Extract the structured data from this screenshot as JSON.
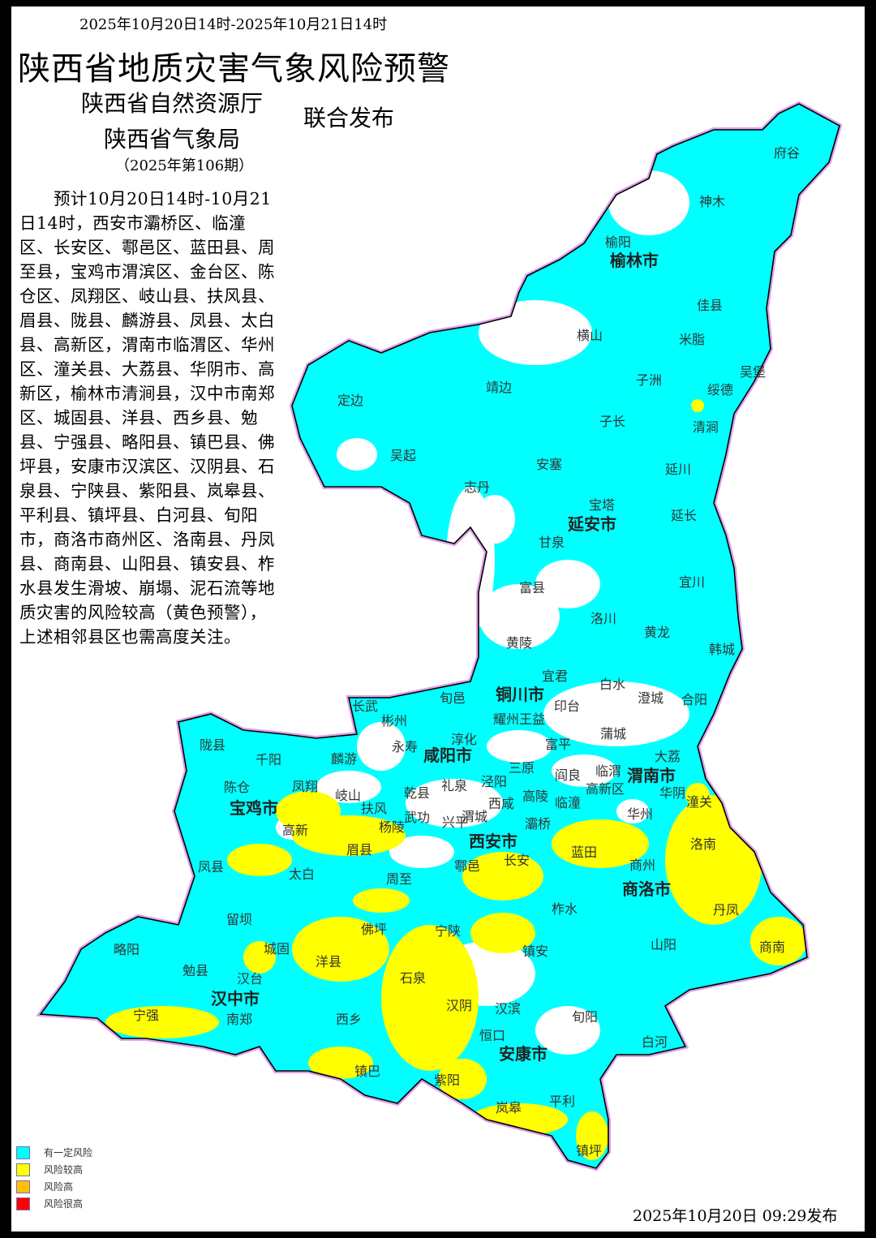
{
  "header": {
    "date_range": "2025年10月20日14时-2025年10月21日14时",
    "title": "陕西省地质灾害气象风险预警",
    "org1": "陕西省自然资源厅",
    "org2": "陕西省气象局",
    "joint": "联合发布",
    "issue": "（2025年第106期）"
  },
  "body_text": "预计10月20日14时-10月21日14时，西安市灞桥区、临潼区、长安区、鄠邑区、蓝田县、周至县，宝鸡市渭滨区、金台区、陈仓区、凤翔区、岐山县、扶风县、眉县、陇县、麟游县、凤县、太白县、高新区，渭南市临渭区、华州区、潼关县、大荔县、华阴市、高新区，榆林市清涧县，汉中市南郑区、城固县、洋县、西乡县、勉县、宁强县、略阳县、镇巴县、佛坪县，安康市汉滨区、汉阴县、石泉县、宁陕县、紫阳县、岚皋县、平利县、镇坪县、白河县、旬阳市，商洛市商州区、洛南县、丹凤县、商南县、山阳县、镇安县、柞水县发生滑坡、崩塌、泥石流等地质灾害的风险较高（黄色预警），上述相邻县区也需高度关注。",
  "map": {
    "colors": {
      "risk_some": "#00FFFF",
      "risk_higher": "#FFFF00",
      "risk_high": "#FFC000",
      "risk_very_high": "#FF0000",
      "boundary": "#E0A0E8"
    },
    "cities": [
      "榆林市",
      "延安市",
      "铜川市",
      "咸阳市",
      "渭南市",
      "宝鸡市",
      "西安市",
      "商洛市",
      "汉中市",
      "安康市"
    ],
    "counties": [
      "府谷",
      "神木",
      "榆阳",
      "佳县",
      "横山",
      "米脂",
      "吴堡",
      "子洲",
      "绥德",
      "定边",
      "靖边",
      "子长",
      "清涧",
      "吴起",
      "安塞",
      "延川",
      "志丹",
      "宝塔",
      "延长",
      "甘泉",
      "宜川",
      "富县",
      "洛川",
      "黄龙",
      "黄陵",
      "韩城",
      "宜君",
      "白水",
      "旬邑",
      "澄城",
      "合阳",
      "长武",
      "印台",
      "彬州",
      "耀州王益",
      "富平",
      "蒲城",
      "淳化",
      "永寿",
      "大荔",
      "陇县",
      "千阳",
      "麟游",
      "三原",
      "阎良",
      "临渭",
      "泾阳",
      "礼泉",
      "乾县",
      "华阴",
      "高新区",
      "陈仓",
      "凤翔",
      "岐山",
      "潼关",
      "扶风",
      "武功",
      "西咸",
      "高陵",
      "临潼",
      "华州",
      "兴平",
      "渭城",
      "杨陵",
      "灞桥",
      "高新",
      "洛南",
      "眉县",
      "蓝田",
      "商州",
      "鄠邑",
      "长安",
      "凤县",
      "太白",
      "周至",
      "丹凤",
      "柞水",
      "留坝",
      "佛坪",
      "宁陕",
      "山阳",
      "商南",
      "镇安",
      "略阳",
      "城固",
      "洋县",
      "勉县",
      "汉台",
      "石泉",
      "宁强",
      "南郑",
      "汉阴",
      "汉滨",
      "旬阳",
      "西乡",
      "白河",
      "恒口",
      "镇巴",
      "紫阳",
      "平利",
      "岚皋",
      "镇坪"
    ]
  },
  "legend": [
    {
      "label": "有一定风险",
      "color": "#00FFFF"
    },
    {
      "label": "风险较高",
      "color": "#FFFF00"
    },
    {
      "label": "风险高",
      "color": "#FFC000"
    },
    {
      "label": "风险很高",
      "color": "#FF0000"
    }
  ],
  "footer": {
    "published": "2025年10月20日  09:29发布"
  }
}
